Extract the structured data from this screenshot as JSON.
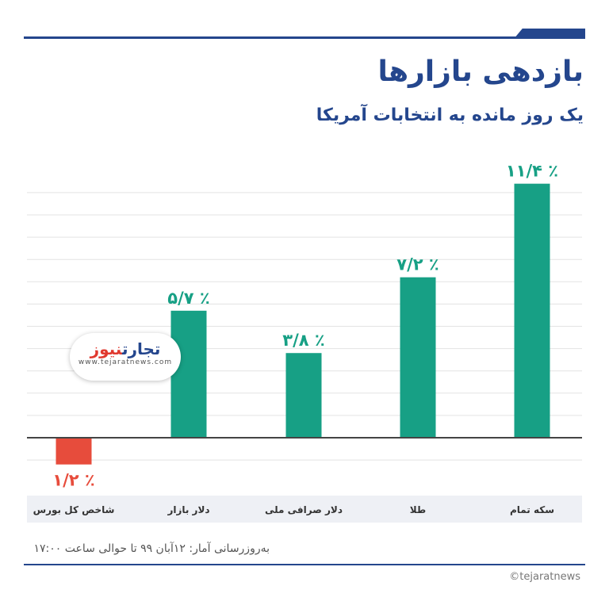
{
  "title": "بازدهی بازارها",
  "subtitle": "یک روز مانده به انتخابات آمریکا",
  "source_note": "به‌روزرسانی آمار: ۱۲آبان ۹۹ تا حوالی ساعت ۱۷:۰۰",
  "copyright": "©tejaratnews",
  "logo": {
    "part1": "تجارت",
    "part2": "نیوز",
    "url": "www.tejaratnews.com"
  },
  "colors": {
    "positive": "#17a085",
    "negative": "#e74c3c",
    "accent": "#24468d"
  },
  "chart_data": {
    "type": "bar",
    "title": "بازدهی بازارها",
    "subtitle": "یک روز مانده به انتخابات آمریکا",
    "categories": [
      "شاخص کل بورس",
      "دلار بازار",
      "دلار صرافی ملی",
      "طلا",
      "سکه تمام"
    ],
    "values": [
      -1.2,
      5.7,
      3.8,
      7.2,
      11.4
    ],
    "value_labels": [
      "۱/۲ ٪",
      "۵/۷ ٪",
      "۳/۸ ٪",
      "۷/۲ ٪",
      "۱۱/۴ ٪"
    ],
    "ylim": [
      -1,
      12
    ],
    "grid": true,
    "legend": "none"
  }
}
